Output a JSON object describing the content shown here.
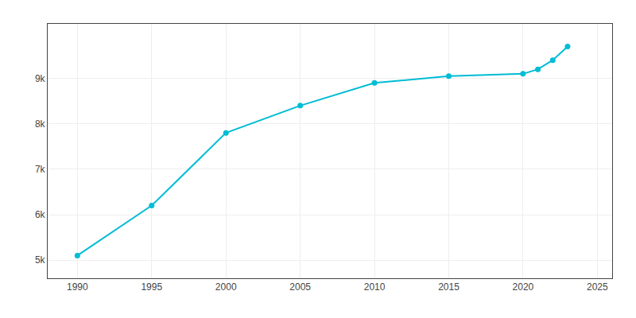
{
  "chart_data": {
    "type": "line",
    "x": [
      1990,
      1995,
      2000,
      2005,
      2010,
      2015,
      2020,
      2021,
      2022,
      2023
    ],
    "values": [
      5100,
      6200,
      7800,
      8400,
      8900,
      9050,
      9100,
      9200,
      9400,
      9700
    ],
    "color": "#00bcd4",
    "marker": "circle",
    "xlim": [
      1988,
      2026
    ],
    "xticks": [
      1990,
      1995,
      2000,
      2005,
      2010,
      2015,
      2020,
      2025
    ],
    "ylim": [
      4600,
      10200
    ],
    "yticks": [
      {
        "value": 5000,
        "label": "5k"
      },
      {
        "value": 6000,
        "label": "6k"
      },
      {
        "value": 7000,
        "label": "7k"
      },
      {
        "value": 8000,
        "label": "8k"
      },
      {
        "value": 9000,
        "label": "9k"
      }
    ],
    "grid": true
  }
}
